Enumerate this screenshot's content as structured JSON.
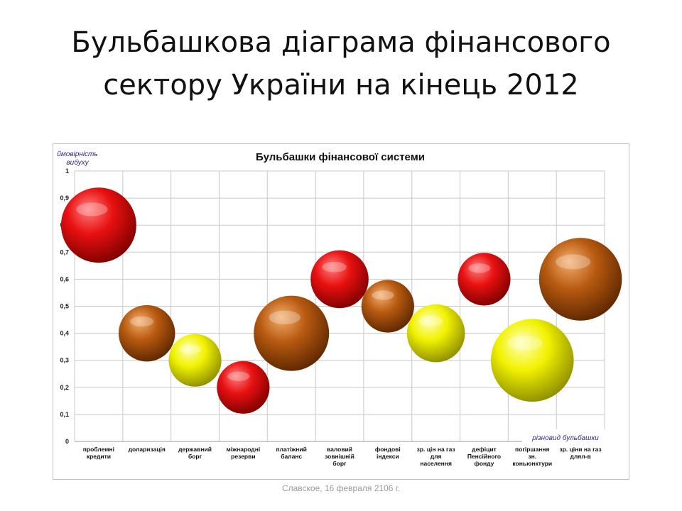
{
  "slide": {
    "title_line1": "Бульбашкова діаграма фінансового",
    "title_line2": "сектору України на кінець 2012",
    "footer": "Славское, 16 февраля 2106 г."
  },
  "chart_data": {
    "type": "bubble",
    "title": "Бульбашки фінансової системи",
    "ylabel_line1": "ймовірність",
    "ylabel_line2": "вибуху",
    "xlabel": "різновид бульбашки",
    "ylim": [
      0,
      1
    ],
    "yticks": [
      "0",
      "0,1",
      "0,2",
      "0,3",
      "0,4",
      "0,5",
      "0,6",
      "0,7",
      "0,8",
      "0,9",
      "1"
    ],
    "grid": true,
    "categories": [
      "проблемні кредити",
      "доларизація",
      "державний борг",
      "міжнародні резерви",
      "платіжний баланс",
      "валовий зовнішній борг",
      "фондові індекси",
      "зр. цін на газ для населення",
      "дефіцит Пенсійного фонду",
      "погіршання зн. коньюнктури",
      "зр. ціни на газ длял-в"
    ],
    "category_labels": [
      [
        "проблемні",
        "кредити"
      ],
      [
        "доларизація"
      ],
      [
        "державний",
        "борг"
      ],
      [
        "міжнародні",
        "резерви"
      ],
      [
        "платіжний",
        "баланс"
      ],
      [
        "валовий",
        "зовнішній",
        "борг"
      ],
      [
        "фондові",
        "індекси"
      ],
      [
        "зр. цін на газ",
        "для",
        "населення"
      ],
      [
        "дефіцит",
        "Пенсійного",
        "фонду"
      ],
      [
        "погіршання",
        "зн.",
        "коньюнктури"
      ],
      [
        "зр. ціни на газ",
        "длял-в"
      ]
    ],
    "points": [
      {
        "x": 1,
        "y": 0.8,
        "size": 1.0,
        "color": "red"
      },
      {
        "x": 2,
        "y": 0.4,
        "size": 0.75,
        "color": "brown"
      },
      {
        "x": 3,
        "y": 0.3,
        "size": 0.7,
        "color": "yellow"
      },
      {
        "x": 4,
        "y": 0.2,
        "size": 0.7,
        "color": "red"
      },
      {
        "x": 5,
        "y": 0.4,
        "size": 1.0,
        "color": "brown"
      },
      {
        "x": 6,
        "y": 0.6,
        "size": 0.77,
        "color": "red"
      },
      {
        "x": 7,
        "y": 0.5,
        "size": 0.7,
        "color": "brown"
      },
      {
        "x": 8,
        "y": 0.4,
        "size": 0.77,
        "color": "yellow"
      },
      {
        "x": 9,
        "y": 0.6,
        "size": 0.7,
        "color": "red"
      },
      {
        "x": 10,
        "y": 0.3,
        "size": 1.1,
        "color": "yellow"
      },
      {
        "x": 11,
        "y": 0.6,
        "size": 1.1,
        "color": "brown"
      }
    ],
    "palette": {
      "red": [
        "#ff8080",
        "#e81010",
        "#7a0000"
      ],
      "brown": [
        "#f5b070",
        "#b85a10",
        "#5a2500"
      ],
      "yellow": [
        "#ffffc0",
        "#f2f200",
        "#8a8a00"
      ]
    },
    "axis_label_color": "#2b2b8c",
    "grid_color": "#c8c8c8"
  }
}
